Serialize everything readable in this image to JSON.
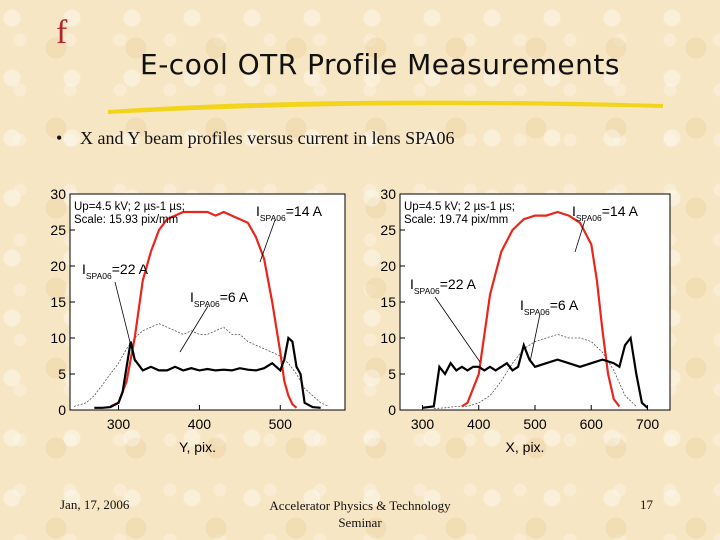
{
  "slide": {
    "logo_glyph": "f",
    "title": "E-cool OTR Profile Measurements",
    "bullet_symbol": "•",
    "bullet": "X and Y beam profiles versus current in lens SPA06",
    "footer_date": "Jan, 17, 2006",
    "footer_center_line1": "Accelerator Physics & Technology",
    "footer_center_line2": "Seminar",
    "footer_page": "17"
  },
  "colors": {
    "red_series": "#e8261c",
    "black_series": "#000000",
    "gray_series": "#555555",
    "accent": "#b0262c"
  },
  "chart_data": [
    {
      "type": "line",
      "xlabel": "Y, pix.",
      "ylabel": "",
      "xticks": [
        300,
        400,
        500
      ],
      "yticks": [
        0,
        5,
        10,
        15,
        20,
        25,
        30
      ],
      "xlim": [
        240,
        580
      ],
      "ylim": [
        0,
        30
      ],
      "info_line1": "Up=4.5 kV; 2 µs-1 µs;",
      "info_line2": "Scale: 15.93 pix/mm",
      "annotations": [
        {
          "text": "I",
          "sub": "SPA06",
          "rest": "=14 A"
        },
        {
          "text": "I",
          "sub": "SPA06",
          "rest": "=22 A"
        },
        {
          "text": "I",
          "sub": "SPA06",
          "rest": "=6 A"
        }
      ],
      "series": [
        {
          "current": "14 A",
          "color": "#e8261c",
          "x": [
            290,
            300,
            310,
            320,
            330,
            340,
            350,
            360,
            370,
            380,
            390,
            400,
            410,
            420,
            430,
            440,
            450,
            460,
            470,
            480,
            490,
            500,
            505,
            510,
            515,
            520
          ],
          "y": [
            0.5,
            1,
            4,
            10,
            18,
            22,
            25,
            26.5,
            27,
            27.5,
            27.5,
            27.5,
            27.5,
            27,
            27.5,
            27,
            26.5,
            26,
            24,
            21,
            15,
            8,
            4,
            2,
            0.8,
            0.3
          ]
        },
        {
          "current": "22 A",
          "color": "#000000",
          "x": [
            270,
            280,
            290,
            300,
            305,
            310,
            315,
            320,
            330,
            340,
            350,
            360,
            370,
            380,
            390,
            400,
            410,
            420,
            430,
            440,
            450,
            460,
            470,
            480,
            490,
            500,
            505,
            510,
            515,
            520,
            525,
            530,
            540,
            550
          ],
          "y": [
            0.3,
            0.3,
            0.4,
            1,
            2.5,
            6,
            9.5,
            7,
            5.5,
            6,
            5.5,
            5.5,
            6,
            5.5,
            5.8,
            5.5,
            5.7,
            5.5,
            5.6,
            5.5,
            5.8,
            5.6,
            5.5,
            5.8,
            6.5,
            5.5,
            7,
            10,
            9.5,
            6,
            5,
            1,
            0.4,
            0.3
          ]
        },
        {
          "current": "6 A",
          "color": "#555555",
          "x": [
            245,
            260,
            270,
            280,
            290,
            300,
            310,
            320,
            330,
            340,
            350,
            360,
            370,
            380,
            390,
            400,
            410,
            420,
            430,
            440,
            450,
            460,
            470,
            480,
            490,
            500,
            510,
            520,
            530,
            540,
            550,
            560
          ],
          "y": [
            0.5,
            1,
            2,
            3.5,
            5,
            6.5,
            8.5,
            10,
            11,
            11.5,
            12,
            11.5,
            11,
            10.5,
            11,
            10.5,
            10.5,
            11,
            11.5,
            10.5,
            10.5,
            9.5,
            9,
            8.5,
            8,
            7.5,
            6.5,
            5,
            3,
            2,
            1,
            0.5
          ]
        }
      ]
    },
    {
      "type": "line",
      "xlabel": "X, pix.",
      "ylabel": "",
      "xticks": [
        300,
        400,
        500,
        600,
        700
      ],
      "yticks": [
        0,
        5,
        10,
        15,
        20,
        25,
        30
      ],
      "xlim": [
        260,
        740
      ],
      "ylim": [
        0,
        30
      ],
      "info_line1": "Up=4.5 kV; 2 µs-1 µs;",
      "info_line2": "Scale: 19.74 pix/mm",
      "annotations": [
        {
          "text": "I",
          "sub": "SPA06",
          "rest": "=14 A"
        },
        {
          "text": "I",
          "sub": "SPA06",
          "rest": "=22 A"
        },
        {
          "text": "I",
          "sub": "SPA06",
          "rest": "=6 A"
        }
      ],
      "series": [
        {
          "current": "14 A",
          "color": "#e8261c",
          "x": [
            370,
            380,
            400,
            420,
            440,
            460,
            480,
            500,
            520,
            540,
            560,
            580,
            600,
            610,
            620,
            630,
            640,
            650
          ],
          "y": [
            0.5,
            1,
            5,
            16,
            22,
            25,
            26.5,
            27,
            27,
            27.5,
            27,
            26,
            23,
            18,
            11,
            5,
            1.5,
            0.5
          ]
        },
        {
          "current": "22 A",
          "color": "#000000",
          "x": [
            300,
            320,
            330,
            340,
            350,
            360,
            370,
            380,
            390,
            400,
            410,
            420,
            430,
            440,
            450,
            460,
            470,
            480,
            490,
            500,
            520,
            540,
            560,
            580,
            600,
            620,
            640,
            650,
            660,
            670,
            680,
            690,
            700
          ],
          "y": [
            0.3,
            0.5,
            6,
            5,
            6.5,
            5.5,
            6,
            5.5,
            6,
            6,
            5.5,
            6,
            5.5,
            6,
            6.5,
            5.5,
            6,
            9,
            7,
            6,
            6.5,
            7,
            6.5,
            6,
            6.5,
            7,
            6.5,
            6,
            9,
            10,
            5,
            1,
            0.3
          ]
        },
        {
          "current": "6 A",
          "color": "#555555",
          "x": [
            320,
            340,
            360,
            380,
            400,
            420,
            440,
            460,
            480,
            500,
            520,
            540,
            560,
            580,
            600,
            620,
            640,
            660,
            680
          ],
          "y": [
            0.2,
            0.3,
            0.5,
            0.5,
            1,
            2,
            4,
            6.5,
            8.5,
            9.5,
            10,
            10.5,
            10,
            10,
            9.5,
            8,
            5.5,
            2,
            0.5
          ]
        }
      ]
    }
  ]
}
